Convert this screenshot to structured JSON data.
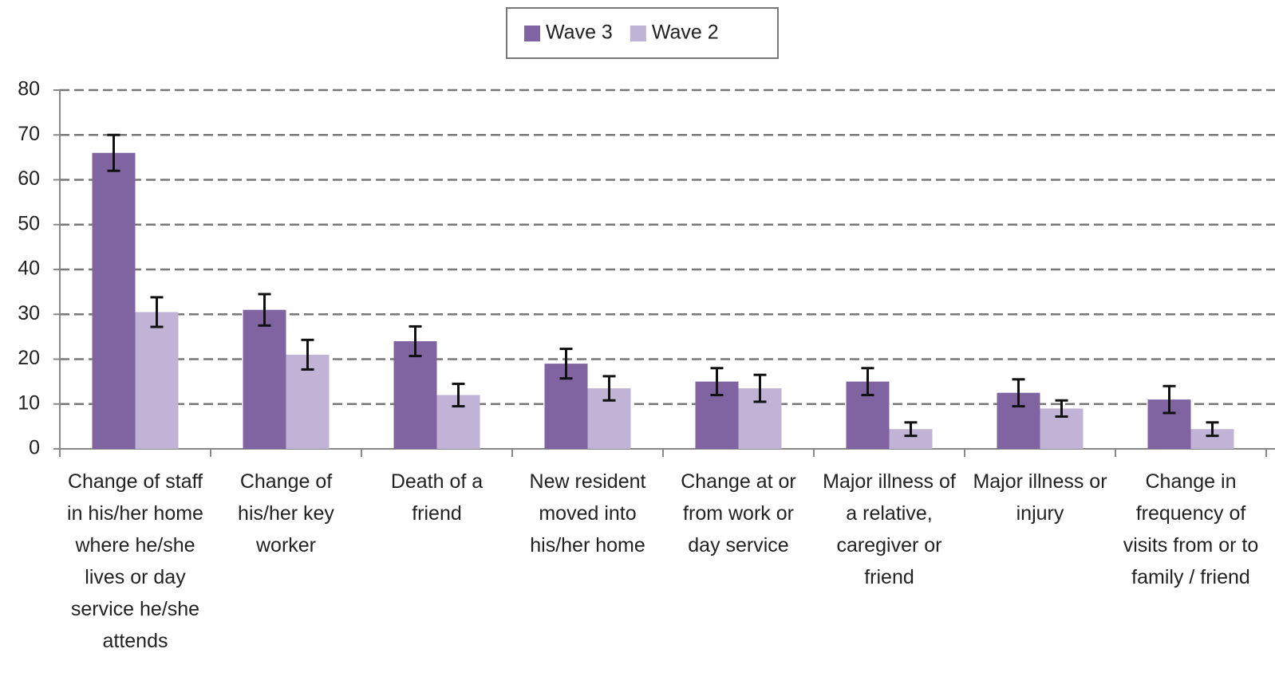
{
  "chart_data": {
    "type": "bar",
    "categories": [
      "Change of staff in his/her home where he/she lives or day service he/she attends",
      "Change of his/her key worker",
      "Death of a friend",
      "New resident moved into his/her home",
      "Change at or from work or day service",
      "Major illness of a relative, caregiver or friend",
      "Major illness or injury",
      "Change in frequency of visits from or to family / friend"
    ],
    "series": [
      {
        "name": "Wave 3",
        "color": "#8064a2",
        "values": [
          66,
          31,
          24,
          19,
          15,
          15,
          12.5,
          11
        ],
        "errors": [
          4,
          3.5,
          3.3,
          3.3,
          3,
          3,
          3,
          3
        ]
      },
      {
        "name": "Wave 2",
        "color": "#c0b3d6",
        "values": [
          30.5,
          21,
          12,
          13.5,
          13.5,
          4.4,
          9,
          4.4
        ],
        "errors": [
          3.3,
          3.3,
          2.5,
          2.7,
          3,
          1.5,
          1.8,
          1.5
        ]
      }
    ],
    "ylim": [
      0,
      80
    ],
    "yticks": [
      0,
      10,
      20,
      30,
      40,
      50,
      60,
      70,
      80
    ],
    "grid": true,
    "legend": "top"
  }
}
